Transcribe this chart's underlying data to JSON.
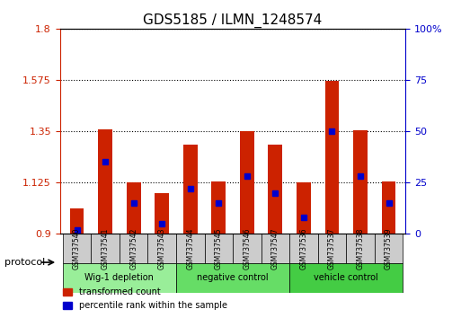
{
  "title": "GDS5185 / ILMN_1248574",
  "samples": [
    "GSM737540",
    "GSM737541",
    "GSM737542",
    "GSM737543",
    "GSM737544",
    "GSM737545",
    "GSM737546",
    "GSM737547",
    "GSM737536",
    "GSM737537",
    "GSM737538",
    "GSM737539"
  ],
  "transformed_count": [
    1.01,
    1.36,
    1.125,
    1.08,
    1.29,
    1.13,
    1.35,
    1.29,
    1.125,
    1.57,
    1.355,
    1.13
  ],
  "percentile_rank": [
    2,
    35,
    15,
    5,
    22,
    15,
    28,
    20,
    8,
    50,
    28,
    15
  ],
  "ylim_left": [
    0.9,
    1.8
  ],
  "yticks_left": [
    0.9,
    1.125,
    1.35,
    1.575,
    1.8
  ],
  "ytick_labels_left": [
    "0.9",
    "1.125",
    "1.35",
    "1.575",
    "1.8"
  ],
  "ylim_right": [
    0,
    100
  ],
  "yticks_right": [
    0,
    25,
    50,
    75,
    100
  ],
  "ytick_labels_right": [
    "0",
    "25",
    "50",
    "75",
    "100%"
  ],
  "bar_color": "#cc2200",
  "marker_color": "#0000cc",
  "bar_width": 0.5,
  "groups": [
    {
      "label": "Wig-1 depletion",
      "indices": [
        0,
        1,
        2,
        3
      ],
      "color": "#99ee99"
    },
    {
      "label": "negative control",
      "indices": [
        4,
        5,
        6,
        7
      ],
      "color": "#66dd66"
    },
    {
      "label": "vehicle control",
      "indices": [
        8,
        9,
        10,
        11
      ],
      "color": "#44cc44"
    }
  ],
  "protocol_label": "protocol",
  "legend_items": [
    {
      "label": "transformed count",
      "color": "#cc2200"
    },
    {
      "label": "percentile rank within the sample",
      "color": "#0000cc"
    }
  ],
  "grid_linestyle": "dotted",
  "background_color": "#ffffff",
  "plot_bg": "#ffffff",
  "left_axis_color": "#cc2200",
  "right_axis_color": "#0000cc",
  "tick_area_color": "#cccccc"
}
